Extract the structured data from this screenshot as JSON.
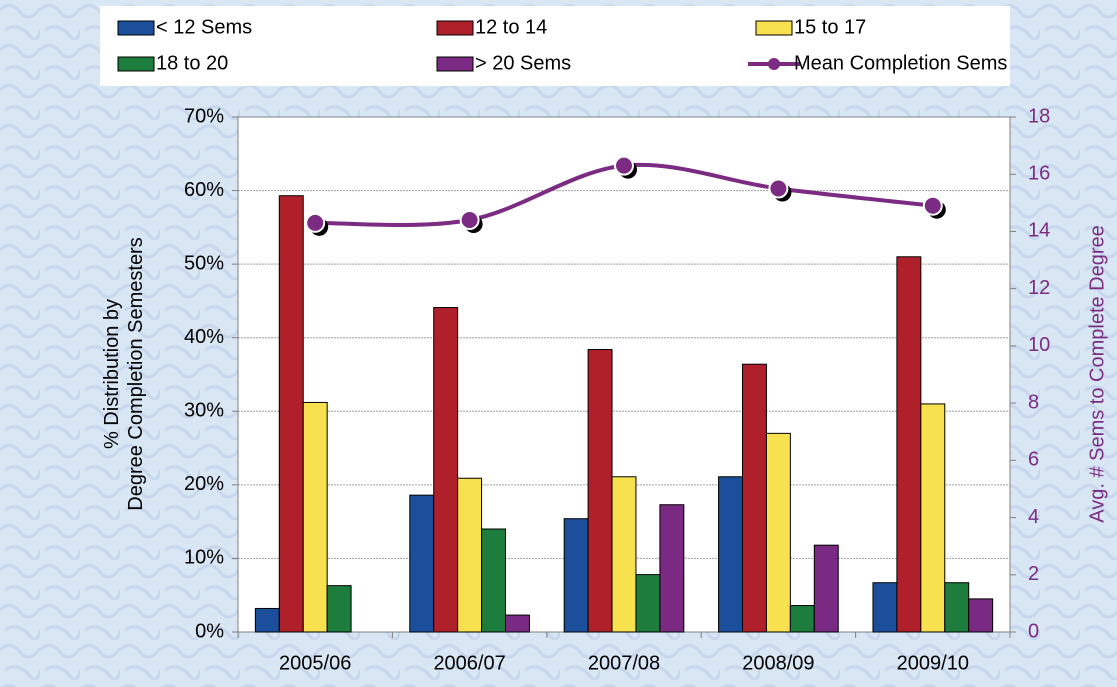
{
  "chart_data": {
    "type": "bar",
    "y_axis_label": "%  Distribution by\nDegree Completion Semesters",
    "y2_axis_label": "Avg. # Sems to Complete Degree",
    "categories": [
      "2005/06",
      "2006/07",
      "2007/08",
      "2008/09",
      "2009/10"
    ],
    "series": [
      {
        "name": "< 12 Sems",
        "color": "#1b4f9c",
        "values": [
          3.2,
          18.6,
          15.4,
          21.1,
          6.7
        ]
      },
      {
        "name": "12 to 14",
        "color": "#b0202a",
        "values": [
          59.3,
          44.1,
          38.4,
          36.4,
          51.0
        ]
      },
      {
        "name": "15 to 17",
        "color": "#f7e14f",
        "values": [
          31.2,
          20.9,
          21.1,
          27.0,
          31.0
        ]
      },
      {
        "name": "18 to 20",
        "color": "#1d7d3c",
        "values": [
          6.3,
          14.0,
          7.8,
          3.6,
          6.7
        ]
      },
      {
        "name": "> 20 Sems",
        "color": "#7a2a82",
        "values": [
          null,
          2.3,
          17.3,
          11.8,
          4.5
        ]
      },
      {
        "name": "Mean Completion Sems",
        "color": "#7b2c82",
        "type": "line",
        "axis": "y2",
        "values": [
          14.3,
          14.4,
          16.3,
          15.5,
          14.9
        ]
      }
    ],
    "ylim": [
      0,
      70
    ],
    "yticks": [
      {
        "value": 0,
        "label": "0%"
      },
      {
        "value": 10,
        "label": "10%"
      },
      {
        "value": 20,
        "label": "20%"
      },
      {
        "value": 30,
        "label": "30%"
      },
      {
        "value": 40,
        "label": "40%"
      },
      {
        "value": 50,
        "label": "50%"
      },
      {
        "value": 60,
        "label": "60%"
      },
      {
        "value": 70,
        "label": "70%"
      }
    ],
    "y2lim": [
      0,
      18
    ],
    "y2ticks": [
      0,
      2,
      4,
      6,
      8,
      10,
      12,
      14,
      16,
      18
    ],
    "grid": true,
    "legend": "top"
  }
}
